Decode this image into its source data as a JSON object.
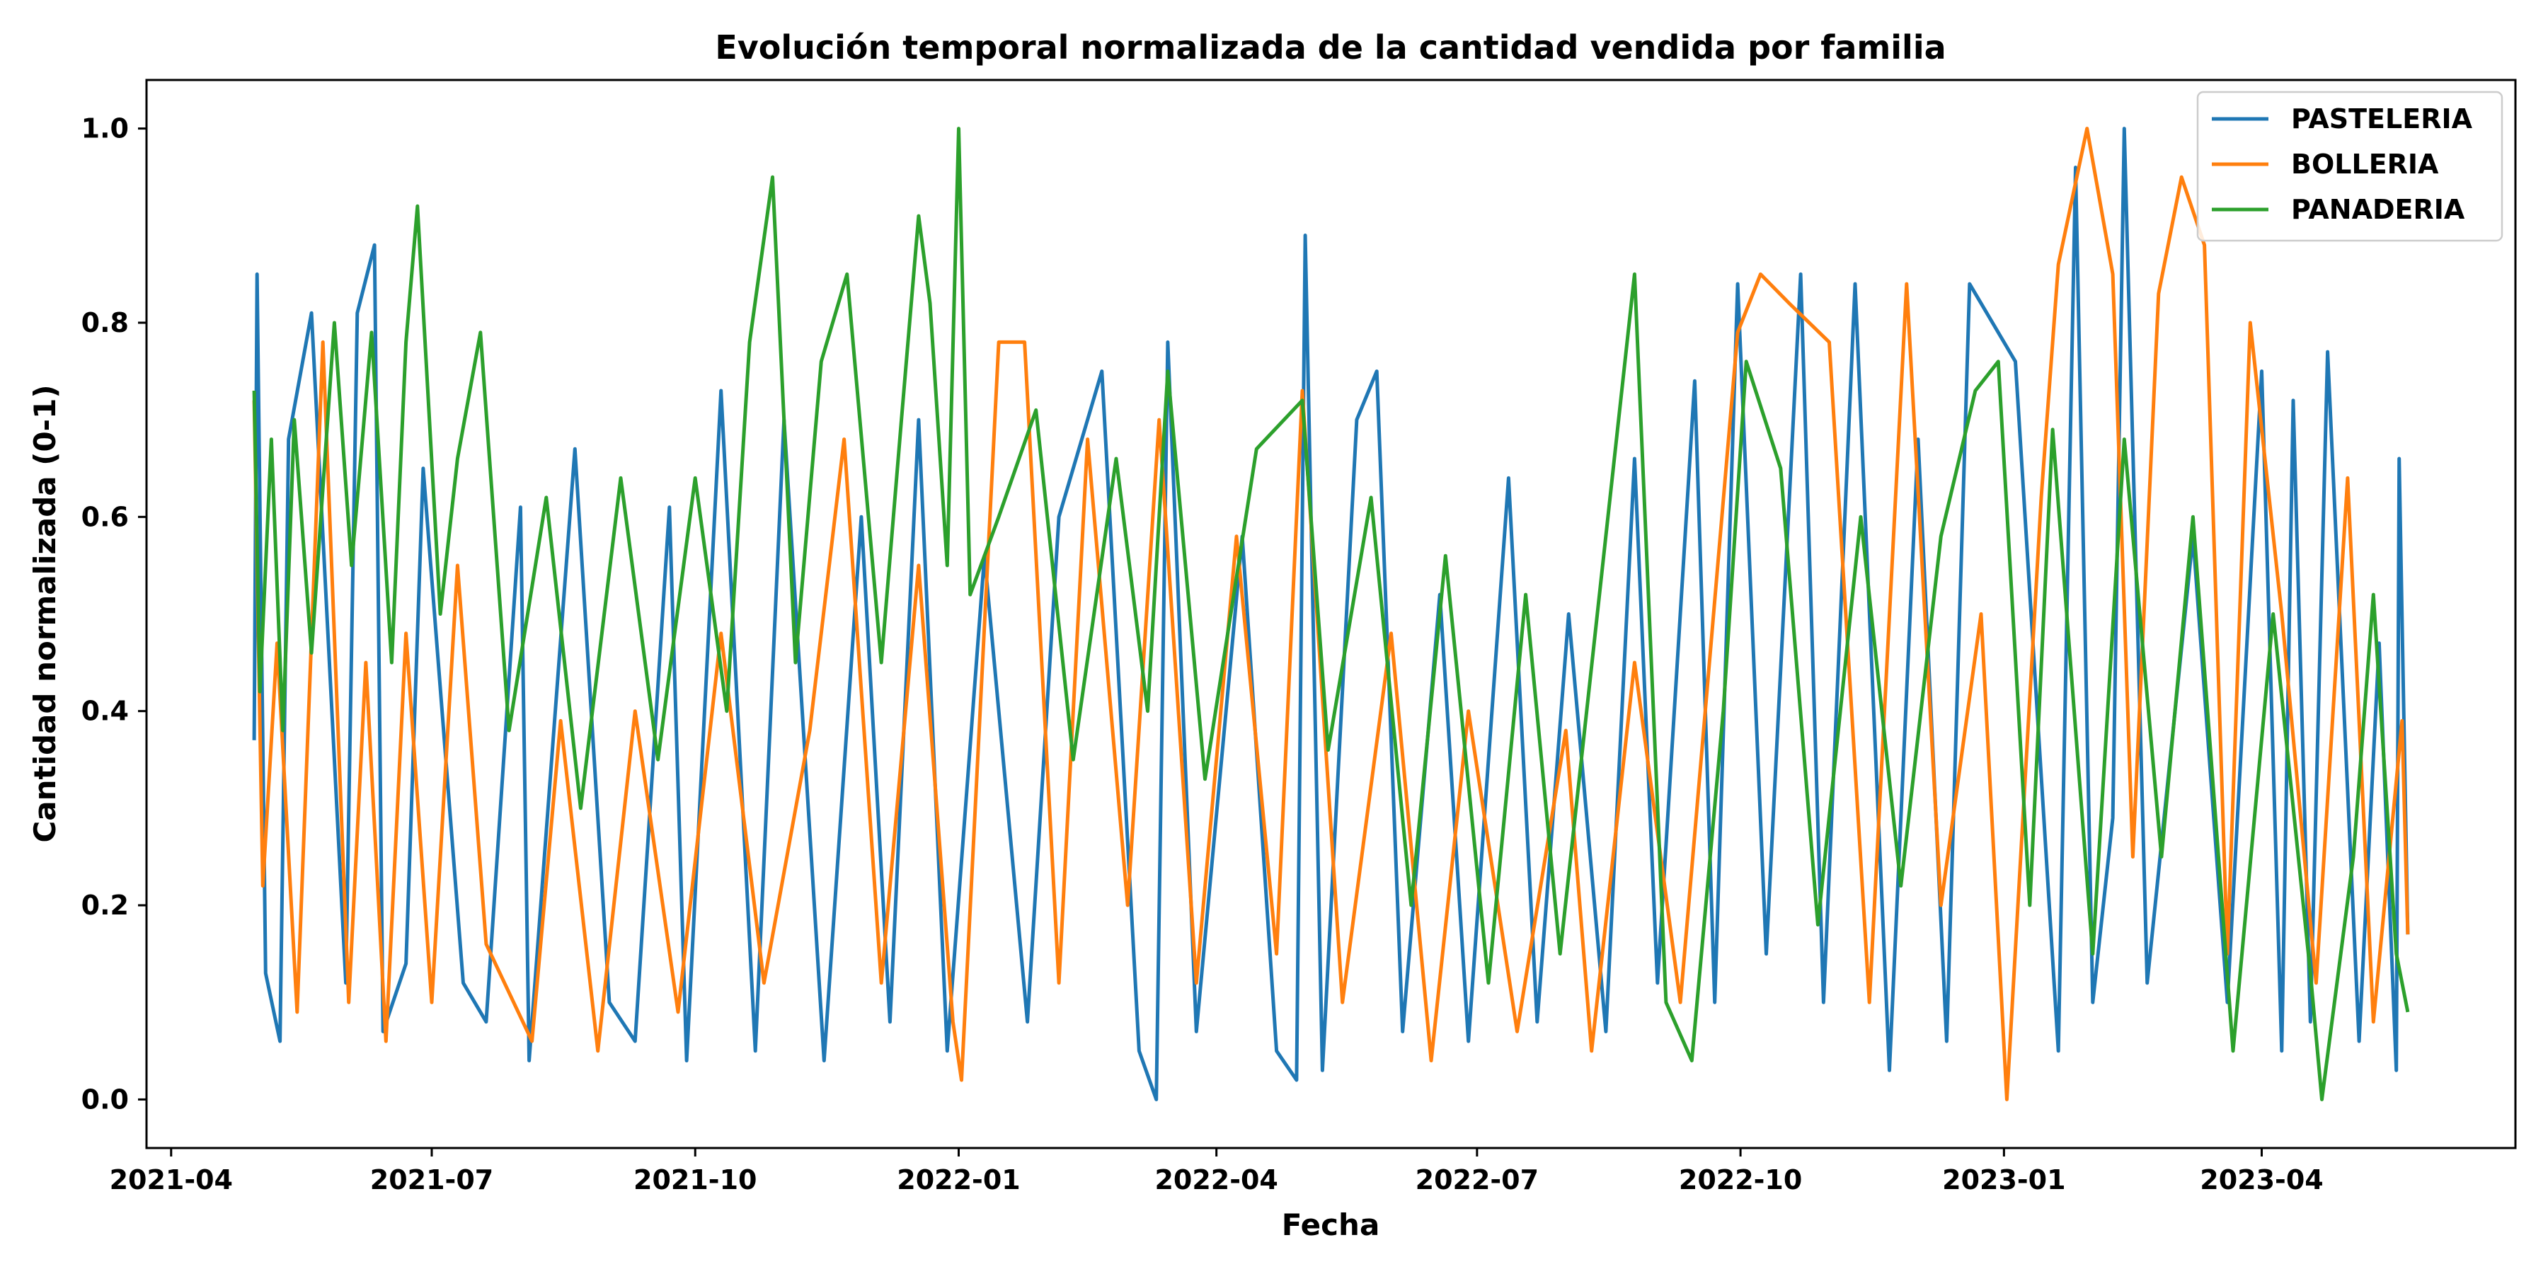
{
  "chart_data": {
    "type": "line",
    "title": "Evolución temporal normalizada de la cantidad vendida por familia",
    "xlabel": "Fecha",
    "ylabel": "Cantidad normalizada (0-1)",
    "x_range": [
      "2021-04-30",
      "2023-05-22"
    ],
    "x_ticks": [
      "2021-04",
      "2021-07",
      "2021-10",
      "2022-01",
      "2022-04",
      "2022-07",
      "2022-10",
      "2023-01",
      "2023-04"
    ],
    "y_ticks": [
      "0.0",
      "0.2",
      "0.4",
      "0.6",
      "0.8",
      "1.0"
    ],
    "ylim": [
      -0.05,
      1.05
    ],
    "grid": false,
    "legend_position": "top-right",
    "series": [
      {
        "name": "PASTELERIA",
        "color": "#1f77b4",
        "points": [
          [
            "2021-04-30",
            0.37
          ],
          [
            "2021-05-01",
            0.85
          ],
          [
            "2021-05-04",
            0.13
          ],
          [
            "2021-05-09",
            0.06
          ],
          [
            "2021-05-12",
            0.68
          ],
          [
            "2021-05-20",
            0.81
          ],
          [
            "2021-06-01",
            0.12
          ],
          [
            "2021-06-05",
            0.81
          ],
          [
            "2021-06-11",
            0.88
          ],
          [
            "2021-06-14",
            0.07
          ],
          [
            "2021-06-22",
            0.14
          ],
          [
            "2021-06-28",
            0.65
          ],
          [
            "2021-07-12",
            0.12
          ],
          [
            "2021-07-20",
            0.08
          ],
          [
            "2021-08-01",
            0.61
          ],
          [
            "2021-08-04",
            0.04
          ],
          [
            "2021-08-20",
            0.67
          ],
          [
            "2021-09-01",
            0.1
          ],
          [
            "2021-09-10",
            0.06
          ],
          [
            "2021-09-22",
            0.61
          ],
          [
            "2021-09-28",
            0.04
          ],
          [
            "2021-10-10",
            0.73
          ],
          [
            "2021-10-22",
            0.05
          ],
          [
            "2021-11-01",
            0.7
          ],
          [
            "2021-11-15",
            0.04
          ],
          [
            "2021-11-28",
            0.6
          ],
          [
            "2021-12-08",
            0.08
          ],
          [
            "2021-12-18",
            0.7
          ],
          [
            "2021-12-28",
            0.05
          ],
          [
            "2022-01-10",
            0.56
          ],
          [
            "2022-01-25",
            0.08
          ],
          [
            "2022-02-05",
            0.6
          ],
          [
            "2022-02-20",
            0.75
          ],
          [
            "2022-03-05",
            0.05
          ],
          [
            "2022-03-11",
            0.0
          ],
          [
            "2022-03-15",
            0.78
          ],
          [
            "2022-03-25",
            0.07
          ],
          [
            "2022-04-10",
            0.58
          ],
          [
            "2022-04-22",
            0.05
          ],
          [
            "2022-04-29",
            0.02
          ],
          [
            "2022-05-02",
            0.89
          ],
          [
            "2022-05-08",
            0.03
          ],
          [
            "2022-05-20",
            0.7
          ],
          [
            "2022-05-27",
            0.75
          ],
          [
            "2022-06-05",
            0.07
          ],
          [
            "2022-06-18",
            0.52
          ],
          [
            "2022-06-28",
            0.06
          ],
          [
            "2022-07-12",
            0.64
          ],
          [
            "2022-07-22",
            0.08
          ],
          [
            "2022-08-02",
            0.5
          ],
          [
            "2022-08-15",
            0.07
          ],
          [
            "2022-08-25",
            0.66
          ],
          [
            "2022-09-02",
            0.12
          ],
          [
            "2022-09-15",
            0.74
          ],
          [
            "2022-09-22",
            0.1
          ],
          [
            "2022-09-30",
            0.84
          ],
          [
            "2022-10-10",
            0.15
          ],
          [
            "2022-10-22",
            0.85
          ],
          [
            "2022-10-30",
            0.1
          ],
          [
            "2022-11-10",
            0.84
          ],
          [
            "2022-11-22",
            0.03
          ],
          [
            "2022-12-02",
            0.68
          ],
          [
            "2022-12-12",
            0.06
          ],
          [
            "2022-12-20",
            0.84
          ],
          [
            "2023-01-05",
            0.76
          ],
          [
            "2023-01-20",
            0.05
          ],
          [
            "2023-01-26",
            0.96
          ],
          [
            "2023-02-01",
            0.1
          ],
          [
            "2023-02-08",
            0.29
          ],
          [
            "2023-02-12",
            1.0
          ],
          [
            "2023-02-20",
            0.12
          ],
          [
            "2023-03-08",
            0.58
          ],
          [
            "2023-03-20",
            0.1
          ],
          [
            "2023-04-01",
            0.75
          ],
          [
            "2023-04-08",
            0.05
          ],
          [
            "2023-04-12",
            0.72
          ],
          [
            "2023-04-18",
            0.08
          ],
          [
            "2023-04-24",
            0.77
          ],
          [
            "2023-05-05",
            0.06
          ],
          [
            "2023-05-12",
            0.47
          ],
          [
            "2023-05-18",
            0.03
          ],
          [
            "2023-05-19",
            0.66
          ],
          [
            "2023-05-22",
            0.17
          ]
        ]
      },
      {
        "name": "BOLLERIA",
        "color": "#ff7f0e",
        "points": [
          [
            "2021-04-30",
            0.72
          ],
          [
            "2021-05-03",
            0.22
          ],
          [
            "2021-05-08",
            0.47
          ],
          [
            "2021-05-15",
            0.09
          ],
          [
            "2021-05-24",
            0.78
          ],
          [
            "2021-06-02",
            0.1
          ],
          [
            "2021-06-08",
            0.45
          ],
          [
            "2021-06-15",
            0.06
          ],
          [
            "2021-06-22",
            0.48
          ],
          [
            "2021-07-01",
            0.1
          ],
          [
            "2021-07-10",
            0.55
          ],
          [
            "2021-07-20",
            0.16
          ],
          [
            "2021-08-05",
            0.06
          ],
          [
            "2021-08-15",
            0.39
          ],
          [
            "2021-08-28",
            0.05
          ],
          [
            "2021-09-10",
            0.4
          ],
          [
            "2021-09-25",
            0.09
          ],
          [
            "2021-10-10",
            0.48
          ],
          [
            "2021-10-25",
            0.12
          ],
          [
            "2021-11-10",
            0.38
          ],
          [
            "2021-11-22",
            0.68
          ],
          [
            "2021-12-05",
            0.12
          ],
          [
            "2021-12-18",
            0.55
          ],
          [
            "2021-12-30",
            0.08
          ],
          [
            "2022-01-02",
            0.02
          ],
          [
            "2022-01-15",
            0.78
          ],
          [
            "2022-01-24",
            0.78
          ],
          [
            "2022-02-05",
            0.12
          ],
          [
            "2022-02-15",
            0.68
          ],
          [
            "2022-03-01",
            0.2
          ],
          [
            "2022-03-12",
            0.7
          ],
          [
            "2022-03-25",
            0.12
          ],
          [
            "2022-04-08",
            0.58
          ],
          [
            "2022-04-22",
            0.15
          ],
          [
            "2022-05-01",
            0.73
          ],
          [
            "2022-05-15",
            0.1
          ],
          [
            "2022-06-01",
            0.48
          ],
          [
            "2022-06-15",
            0.04
          ],
          [
            "2022-06-28",
            0.4
          ],
          [
            "2022-07-15",
            0.07
          ],
          [
            "2022-08-01",
            0.38
          ],
          [
            "2022-08-10",
            0.05
          ],
          [
            "2022-08-25",
            0.45
          ],
          [
            "2022-09-10",
            0.1
          ],
          [
            "2022-09-30",
            0.79
          ],
          [
            "2022-10-08",
            0.85
          ],
          [
            "2022-10-18",
            0.82
          ],
          [
            "2022-11-01",
            0.78
          ],
          [
            "2022-11-15",
            0.1
          ],
          [
            "2022-11-28",
            0.84
          ],
          [
            "2022-12-10",
            0.2
          ],
          [
            "2022-12-24",
            0.5
          ],
          [
            "2023-01-02",
            0.0
          ],
          [
            "2023-01-14",
            0.62
          ],
          [
            "2023-01-20",
            0.86
          ],
          [
            "2023-01-30",
            1.0
          ],
          [
            "2023-02-08",
            0.85
          ],
          [
            "2023-02-15",
            0.25
          ],
          [
            "2023-02-24",
            0.83
          ],
          [
            "2023-03-04",
            0.95
          ],
          [
            "2023-03-12",
            0.88
          ],
          [
            "2023-03-20",
            0.15
          ],
          [
            "2023-03-28",
            0.8
          ],
          [
            "2023-04-08",
            0.5
          ],
          [
            "2023-04-20",
            0.12
          ],
          [
            "2023-05-01",
            0.64
          ],
          [
            "2023-05-10",
            0.08
          ],
          [
            "2023-05-20",
            0.39
          ],
          [
            "2023-05-22",
            0.17
          ]
        ]
      },
      {
        "name": "PANADERIA",
        "color": "#2ca02c",
        "points": [
          [
            "2021-04-30",
            0.73
          ],
          [
            "2021-05-02",
            0.42
          ],
          [
            "2021-05-06",
            0.68
          ],
          [
            "2021-05-10",
            0.38
          ],
          [
            "2021-05-14",
            0.7
          ],
          [
            "2021-05-20",
            0.46
          ],
          [
            "2021-05-28",
            0.8
          ],
          [
            "2021-06-03",
            0.55
          ],
          [
            "2021-06-10",
            0.79
          ],
          [
            "2021-06-17",
            0.45
          ],
          [
            "2021-06-22",
            0.78
          ],
          [
            "2021-06-26",
            0.92
          ],
          [
            "2021-07-04",
            0.5
          ],
          [
            "2021-07-10",
            0.66
          ],
          [
            "2021-07-18",
            0.79
          ],
          [
            "2021-07-28",
            0.38
          ],
          [
            "2021-08-10",
            0.62
          ],
          [
            "2021-08-22",
            0.3
          ],
          [
            "2021-09-05",
            0.64
          ],
          [
            "2021-09-18",
            0.35
          ],
          [
            "2021-10-01",
            0.64
          ],
          [
            "2021-10-12",
            0.4
          ],
          [
            "2021-10-20",
            0.78
          ],
          [
            "2021-10-28",
            0.95
          ],
          [
            "2021-11-05",
            0.45
          ],
          [
            "2021-11-14",
            0.76
          ],
          [
            "2021-11-23",
            0.85
          ],
          [
            "2021-12-05",
            0.45
          ],
          [
            "2021-12-12",
            0.7
          ],
          [
            "2021-12-18",
            0.91
          ],
          [
            "2021-12-22",
            0.82
          ],
          [
            "2021-12-28",
            0.55
          ],
          [
            "2022-01-01",
            1.0
          ],
          [
            "2022-01-05",
            0.52
          ],
          [
            "2022-01-15",
            0.6
          ],
          [
            "2022-01-28",
            0.71
          ],
          [
            "2022-02-10",
            0.35
          ],
          [
            "2022-02-25",
            0.66
          ],
          [
            "2022-03-08",
            0.4
          ],
          [
            "2022-03-15",
            0.75
          ],
          [
            "2022-03-28",
            0.33
          ],
          [
            "2022-04-15",
            0.67
          ],
          [
            "2022-05-01",
            0.72
          ],
          [
            "2022-05-10",
            0.36
          ],
          [
            "2022-05-25",
            0.62
          ],
          [
            "2022-06-08",
            0.2
          ],
          [
            "2022-06-20",
            0.56
          ],
          [
            "2022-07-05",
            0.12
          ],
          [
            "2022-07-18",
            0.52
          ],
          [
            "2022-07-30",
            0.15
          ],
          [
            "2022-08-12",
            0.5
          ],
          [
            "2022-08-25",
            0.85
          ],
          [
            "2022-09-05",
            0.1
          ],
          [
            "2022-09-14",
            0.04
          ],
          [
            "2022-09-25",
            0.4
          ],
          [
            "2022-10-03",
            0.76
          ],
          [
            "2022-10-15",
            0.65
          ],
          [
            "2022-10-28",
            0.18
          ],
          [
            "2022-11-12",
            0.6
          ],
          [
            "2022-11-26",
            0.22
          ],
          [
            "2022-12-10",
            0.58
          ],
          [
            "2022-12-22",
            0.73
          ],
          [
            "2022-12-30",
            0.76
          ],
          [
            "2023-01-10",
            0.2
          ],
          [
            "2023-01-18",
            0.69
          ],
          [
            "2023-02-01",
            0.15
          ],
          [
            "2023-02-12",
            0.68
          ],
          [
            "2023-02-25",
            0.25
          ],
          [
            "2023-03-08",
            0.6
          ],
          [
            "2023-03-22",
            0.05
          ],
          [
            "2023-04-05",
            0.5
          ],
          [
            "2023-04-18",
            0.13
          ],
          [
            "2023-04-22",
            0.0
          ],
          [
            "2023-05-03",
            0.25
          ],
          [
            "2023-05-10",
            0.52
          ],
          [
            "2023-05-18",
            0.15
          ],
          [
            "2023-05-22",
            0.09
          ]
        ]
      }
    ]
  }
}
